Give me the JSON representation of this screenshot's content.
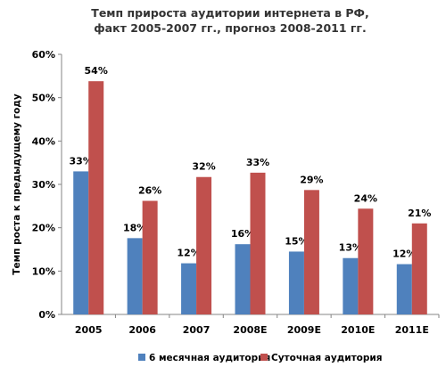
{
  "chart_data": {
    "type": "bar",
    "title_lines": [
      "Темп прироста аудитории интернета в РФ,",
      "факт 2005-2007 гг., прогноз 2008-2011 гг."
    ],
    "ylabel": "Темп роста к предыдущему году",
    "xlabel": "",
    "categories": [
      "2005",
      "2006",
      "2007",
      "2008E",
      "2009E",
      "2010E",
      "2011E"
    ],
    "ylim": [
      0,
      60
    ],
    "y_ticks": [
      0,
      10,
      20,
      30,
      40,
      50,
      60
    ],
    "y_tick_labels": [
      "0%",
      "10%",
      "20%",
      "30%",
      "40%",
      "50%",
      "60%"
    ],
    "grid": false,
    "legend_position": "bottom",
    "series": [
      {
        "name": "6 месячная аудитория",
        "color": "#4f81bd",
        "values": [
          33,
          17.6,
          11.8,
          16.2,
          14.5,
          13,
          11.6
        ],
        "labels": [
          "33%",
          "18%",
          "12%",
          "16%",
          "15%",
          "13%",
          "12%"
        ]
      },
      {
        "name": "Суточная аудитория",
        "color": "#c0504d",
        "values": [
          53.8,
          26.2,
          31.7,
          32.7,
          28.7,
          24.4,
          21
        ],
        "labels": [
          "54%",
          "26%",
          "32%",
          "33%",
          "29%",
          "24%",
          "21%"
        ]
      }
    ]
  }
}
